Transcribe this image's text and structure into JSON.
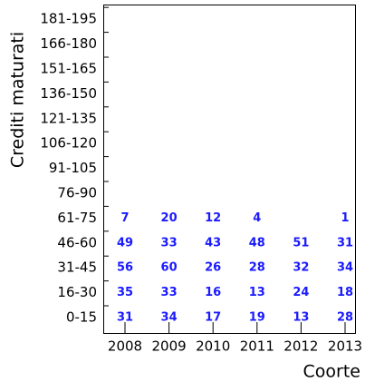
{
  "chart_data": {
    "type": "text-grid",
    "xlabel": "Coorte",
    "ylabel": "Crediti maturati",
    "x_categories": [
      "2008",
      "2009",
      "2010",
      "2011",
      "2012",
      "2013"
    ],
    "y_categories": [
      "0-15",
      "16-30",
      "31-45",
      "46-60",
      "61-75",
      "76-90",
      "91-105",
      "106-120",
      "121-135",
      "136-150",
      "151-165",
      "166-180",
      "181-195"
    ],
    "values": [
      [
        31,
        34,
        17,
        19,
        13,
        28
      ],
      [
        35,
        33,
        16,
        13,
        24,
        18
      ],
      [
        56,
        60,
        26,
        28,
        32,
        34
      ],
      [
        49,
        33,
        43,
        48,
        51,
        31
      ],
      [
        7,
        20,
        12,
        4,
        null,
        1
      ],
      [
        null,
        null,
        null,
        null,
        null,
        null
      ],
      [
        null,
        null,
        null,
        null,
        null,
        null
      ],
      [
        null,
        null,
        null,
        null,
        null,
        null
      ],
      [
        null,
        null,
        null,
        null,
        null,
        null
      ],
      [
        null,
        null,
        null,
        null,
        null,
        null
      ],
      [
        null,
        null,
        null,
        null,
        null,
        null
      ],
      [
        null,
        null,
        null,
        null,
        null,
        null
      ],
      [
        null,
        null,
        null,
        null,
        null,
        null
      ]
    ],
    "color": "#1a1aff"
  }
}
